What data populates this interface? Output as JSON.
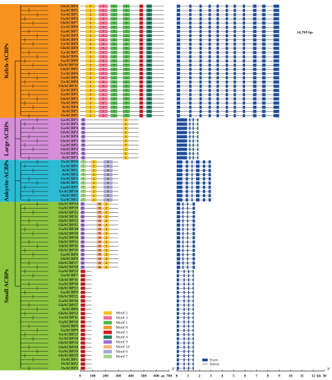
{
  "groups": [
    {
      "name": "Kelch-ACBPs",
      "color": "#f7931e",
      "blocks": [
        {
          "genes": [
            "GhACBP4",
            "GaACBP5",
            "GrACBP5",
            "GaACBP4",
            "GhACBP7",
            "GrACBP6",
            "GaACBP7",
            "GaACBP9",
            "GhACBP9",
            "GrACBP9",
            "GhACBP8",
            "GrACBP7",
            "GhACBP6",
            "GaACBP8",
            "GhACBP10",
            "GhACBP5",
            "GrACBP4",
            "GaACBP6",
            "GrACBP8",
            "GhACBP11",
            "GrACBP3",
            "GaACBP3",
            "GhACBP3",
            "OsACBP6",
            "AtACBP4",
            "AtACBP5",
            "OsACBP5"
          ],
          "length": 660,
          "motifs": [
            {
              "motif": "2",
              "start": 43,
              "end": 120
            },
            {
              "motif": "3",
              "start": 147,
              "end": 217
            },
            {
              "motif": "1",
              "start": 240,
              "end": 293
            },
            {
              "motif": "1",
              "start": 337,
              "end": 391
            },
            {
              "motif": "5",
              "start": 467,
              "end": 495
            },
            {
              "motif": "4",
              "start": 522,
              "end": 565
            }
          ],
          "exons": [
            [
              0,
              0.3
            ],
            [
              1.1,
              1.3
            ],
            [
              2,
              2.2
            ],
            [
              2.8,
              3
            ],
            [
              3.5,
              3.7
            ],
            [
              4.3,
              4.5
            ],
            [
              5,
              5.2
            ],
            [
              5.8,
              6
            ],
            [
              6.7,
              7
            ],
            [
              7.5,
              7.8
            ],
            [
              8.5,
              9
            ]
          ]
        }
      ]
    },
    {
      "name": "Large ACBPs",
      "color": "#d68fd8",
      "blocks": [
        {
          "genes": [
            "GaACBP3",
            "GrACBP3",
            "GaACBP4",
            "GhACBP2",
            "GrACBP4",
            "GhACBP3",
            "GaACBP2",
            "GhACBP4",
            "GrACBP2",
            "AtACBP3"
          ],
          "length": 460,
          "motifs": [
            {
              "motif": "9",
              "start": 10,
              "end": 40
            },
            {
              "motif": "2",
              "start": 337,
              "end": 380
            }
          ],
          "exons": [
            [
              0,
              0.9
            ],
            [
              1.1,
              1.2
            ],
            [
              1.4,
              1.5
            ],
            [
              1.8,
              1.9
            ]
          ]
        }
      ]
    },
    {
      "name": "Ankyrin-ACBPs",
      "color": "#2bbcd4",
      "blocks": [
        {
          "genes": [
            "OsACBP4",
            "GrACBP1",
            "AtACBP1",
            "AtACBP2",
            "GrACBP2",
            "GhACBP1",
            "GaACBP1",
            "GrACBP10",
            "GhACBP2",
            "GaACBP2"
          ],
          "length": 300,
          "motifs": [
            {
              "motif": "7",
              "start": 5,
              "end": 45
            },
            {
              "motif": "2",
              "start": 87,
              "end": 130
            },
            {
              "motif": "6",
              "start": 185,
              "end": 255
            }
          ],
          "exons": [
            [
              0,
              0.5
            ],
            [
              0.8,
              1
            ],
            [
              1.3,
              1.4
            ],
            [
              1.7,
              2
            ],
            [
              2.3,
              2.5
            ],
            [
              2.8,
              3
            ]
          ]
        }
      ]
    },
    {
      "name": "Small ACBPs",
      "color": "#8dc63f",
      "blocks": [
        {
          "genes": [
            "GhACBP14",
            "GaACBP19",
            "GhACBP12",
            "GhACBP11",
            "GhACBP13",
            "GhACBP15",
            "GaACBP20",
            "GhACBP10",
            "GaACBP10",
            "GhACBP12",
            "GhACBP11",
            "GhACBP16",
            "GaACBP8",
            "GhACBP9",
            "GhACBP17",
            "GhACBP18"
          ],
          "length": 300,
          "motifs": [
            {
              "motif": "9",
              "start": 5,
              "end": 35
            },
            {
              "motif": "10",
              "start": 130,
              "end": 174
            },
            {
              "motif": "2",
              "start": 185,
              "end": 228
            }
          ],
          "exons": [
            [
              0,
              0.3
            ],
            [
              0.5,
              0.6
            ],
            [
              0.9,
              1
            ],
            [
              1.4,
              1.6
            ]
          ]
        },
        {
          "genes": [
            "GaACBP12",
            "GaACBP7",
            "GhACBP11",
            "GaACBP10",
            "GhACBP13",
            "GaACBP8",
            "GhACBP15",
            "GaACBP16",
            "GhACBP17",
            "AtACBP6",
            "GhACBP13",
            "GaACBP11",
            "GaACBP10",
            "GhACBP8",
            "GaACBP9",
            "GrACBP13",
            "GrACBP14",
            "GhACBP14",
            "GhACBP18",
            "GaACBP19",
            "GhACBP19",
            "OsACBP1",
            "OsACBP2",
            "OsACBP3"
          ],
          "length": 90,
          "motifs": [
            {
              "motif": "5",
              "start": 5,
              "end": 40
            }
          ],
          "exons": [
            [
              0,
              0.2
            ],
            [
              0.6,
              0.7
            ],
            [
              1,
              1.1
            ],
            [
              1.4,
              1.5
            ]
          ]
        }
      ]
    }
  ],
  "legend": [
    {
      "motif": "2",
      "label": "Motif 2",
      "color": "#f8c21d"
    },
    {
      "motif": "3",
      "label": "Motif 3",
      "color": "#f26a8d"
    },
    {
      "motif": "1",
      "label": "Motif 1",
      "color": "#4cb648"
    },
    {
      "motif": "8",
      "label": "Motif 8",
      "color": "#f7941d"
    },
    {
      "motif": "5",
      "label": "Motif 5",
      "color": "#d7191c"
    },
    {
      "motif": "4",
      "label": "Motif 4",
      "color": "#1b7f5e"
    },
    {
      "motif": "9",
      "label": "Motif 9",
      "color": "#9e6bd6"
    },
    {
      "motif": "10",
      "label": "Motif 10",
      "color": "#f9b36b"
    },
    {
      "motif": "6",
      "label": "Motif 6",
      "color": "#a7a3c9"
    },
    {
      "motif": "7",
      "label": "Motif 7",
      "color": "#9fd27f"
    }
  ],
  "exon_legend": {
    "exon": "Exon",
    "intron": "Intron",
    "color": "#1f4e9c"
  },
  "aa_axis": {
    "lim": [
      0,
      700
    ],
    "ticks": [
      0,
      100,
      200,
      300,
      400,
      500,
      600,
      700
    ],
    "unit": "aa",
    "end": "3'"
  },
  "kb_axis": {
    "lim": [
      0,
      12
    ],
    "ticks": [
      0,
      1,
      2,
      3,
      4,
      5,
      6,
      7,
      8,
      9,
      10,
      11,
      12
    ],
    "break_tick": 30,
    "unit": "kb",
    "end": "3'"
  },
  "annotation": "14,769 bp"
}
